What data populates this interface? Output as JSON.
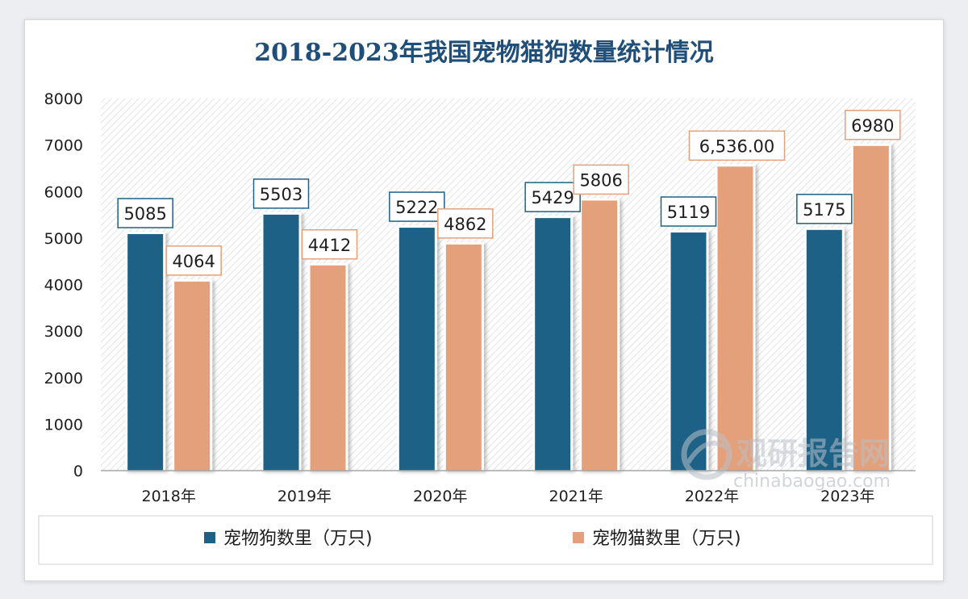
{
  "chart_data": {
    "type": "bar",
    "title": "2018-2023年我国宠物猫狗数量统计情况",
    "categories": [
      "2018年",
      "2019年",
      "2020年",
      "2021年",
      "2022年",
      "2023年"
    ],
    "series": [
      {
        "name": "宠物狗数里（万只)",
        "values": [
          5085,
          5503,
          5222,
          5429,
          5119,
          5175
        ],
        "labels": [
          "5085",
          "5503",
          "5222",
          "5429",
          "5119",
          "5175"
        ],
        "color": "#1d6286"
      },
      {
        "name": "宠物猫数里（万只)",
        "values": [
          4064,
          4412,
          4862,
          5806,
          6536,
          6980
        ],
        "labels": [
          "4064",
          "4412",
          "4862",
          "5806",
          "6,536.00",
          "6980"
        ],
        "color": "#e4a07a"
      }
    ],
    "ylim": [
      0,
      8000
    ],
    "yticks": [
      "0",
      "1000",
      "2000",
      "3000",
      "4000",
      "5000",
      "6000",
      "7000",
      "8000"
    ],
    "grid": false,
    "legend_position": "bottom"
  },
  "colors": {
    "title": "#1f4e79",
    "label_border_dog": "#1d6286",
    "label_border_cat": "#e4a07a",
    "axis": "#a6a6a6"
  },
  "watermark": {
    "cn": "观研报告网",
    "en": "chinabaogao.com"
  }
}
